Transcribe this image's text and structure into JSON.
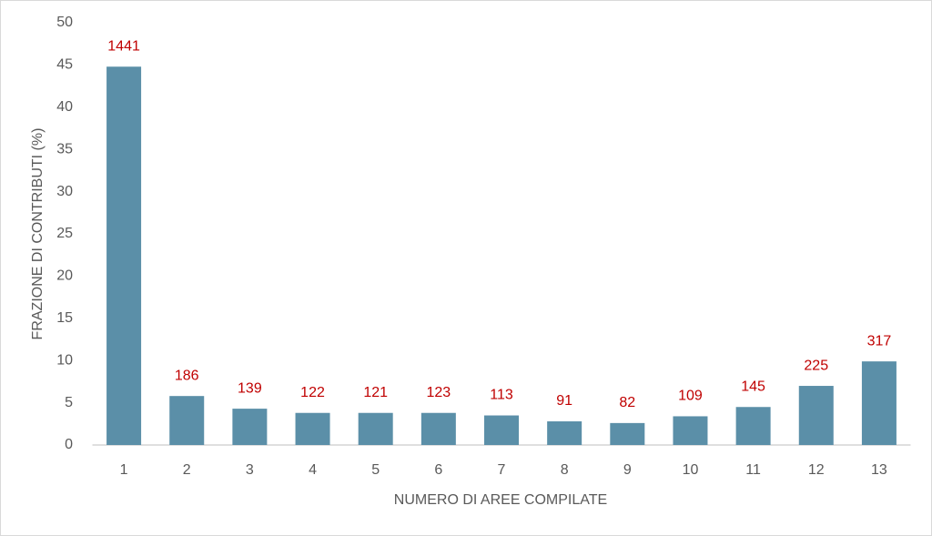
{
  "chart_data": {
    "type": "bar",
    "x_label": "NUMERO DI AREE COMPILATE",
    "y_label": "FRAZIONE DI CONTRIBUTI (%)",
    "categories": [
      "1",
      "2",
      "3",
      "4",
      "5",
      "6",
      "7",
      "8",
      "9",
      "10",
      "11",
      "12",
      "13"
    ],
    "values": [
      44.8,
      5.8,
      4.3,
      3.8,
      3.8,
      3.8,
      3.5,
      2.8,
      2.6,
      3.4,
      4.5,
      7.0,
      9.9
    ],
    "counts": [
      1441,
      186,
      139,
      122,
      121,
      123,
      113,
      91,
      82,
      109,
      145,
      225,
      317
    ],
    "color": "#5b8fa8",
    "label_color": "#c00000",
    "ylim": [
      0,
      50
    ],
    "yticks": [
      0,
      5,
      10,
      15,
      20,
      25,
      30,
      35,
      40,
      45,
      50
    ],
    "grid": false
  }
}
